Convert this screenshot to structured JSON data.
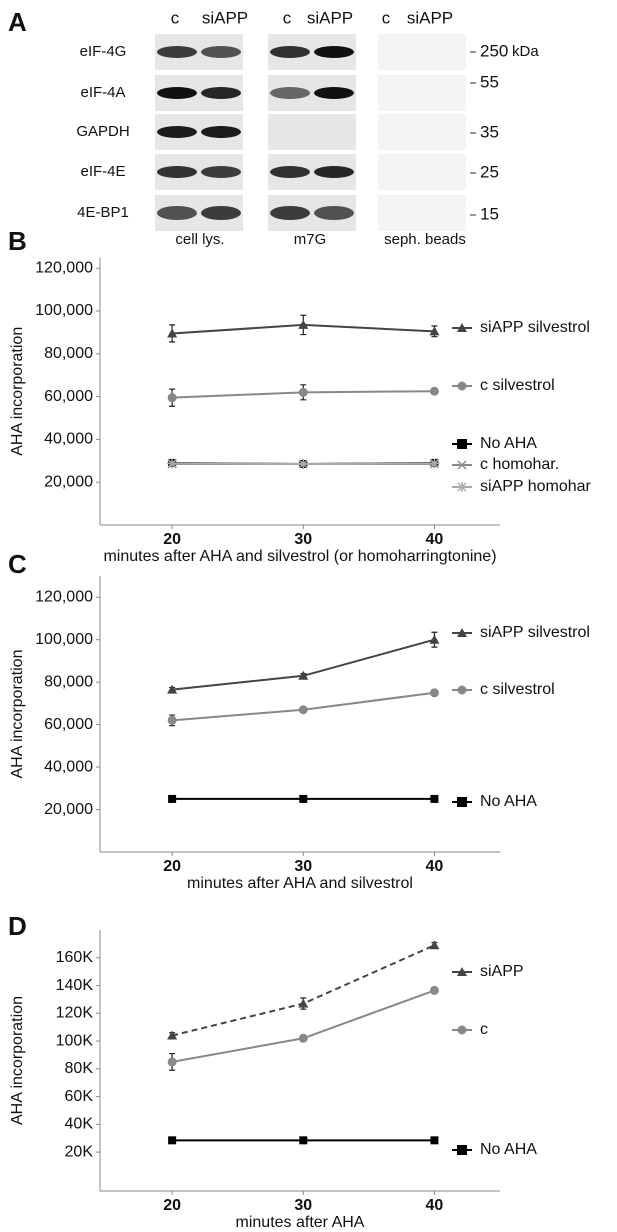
{
  "panel_a": {
    "label": "A",
    "column_headers": [
      "c",
      "siAPP",
      "c",
      "siAPP",
      "c",
      "siAPP"
    ],
    "rows": [
      "eIF-4G",
      "eIF-4A",
      "GAPDH",
      "eIF-4E",
      "4E-BP1"
    ],
    "markers": [
      "250",
      "55",
      "35",
      "25",
      "15"
    ],
    "marker_unit": "kDa",
    "groups": [
      "cell lys.",
      "m7G",
      "seph. beads"
    ]
  },
  "chart_data": [
    {
      "type": "line",
      "panel_label": "B",
      "y_label": "AHA incorporation",
      "x_label": "minutes after AHA and silvestrol (or homoharringtonine)",
      "x": [
        20,
        30,
        40
      ],
      "xlim": [
        14.5,
        45
      ],
      "xticks": [
        20,
        30,
        40
      ],
      "ylim": [
        0,
        125000
      ],
      "yticks": [
        {
          "value": 20000,
          "label": "20,000"
        },
        {
          "value": 40000,
          "label": "40,000"
        },
        {
          "value": 60000,
          "label": "60,000"
        },
        {
          "value": 80000,
          "label": "80,000"
        },
        {
          "value": 100000,
          "label": "100,000"
        },
        {
          "value": 120000,
          "label": "120,000"
        }
      ],
      "grid": false,
      "series": [
        {
          "name": "siAPP silvestrol",
          "color": "#444444",
          "marker": "triangle",
          "dash": false,
          "values": [
            89500,
            93500,
            90500
          ],
          "errors": [
            4000,
            4500,
            2500
          ]
        },
        {
          "name": "c silvestrol",
          "color": "#888888",
          "marker": "circle",
          "dash": false,
          "values": [
            59500,
            62000,
            62500
          ],
          "errors": [
            4000,
            3500,
            800
          ]
        },
        {
          "name": "No AHA",
          "color": "#000000",
          "marker": "square",
          "dash": false,
          "values": [
            29000,
            28500,
            29000
          ],
          "errors": [
            1000,
            1000,
            1000
          ]
        },
        {
          "name": "c homohar.",
          "color": "#8a8a8a",
          "marker": "x",
          "dash": false,
          "values": [
            28500,
            28500,
            28500
          ],
          "errors": [
            800,
            800,
            800
          ]
        },
        {
          "name": "siAPP homohar",
          "color": "#aaaaaa",
          "marker": "star",
          "dash": false,
          "values": [
            28800,
            28500,
            28800
          ],
          "errors": [
            800,
            800,
            800
          ]
        }
      ]
    },
    {
      "type": "line",
      "panel_label": "C",
      "y_label": "AHA incorporation",
      "x_label": "minutes after AHA and silvestrol",
      "x": [
        20,
        30,
        40
      ],
      "xlim": [
        14.5,
        45
      ],
      "xticks": [
        20,
        30,
        40
      ],
      "ylim": [
        0,
        130000
      ],
      "yticks": [
        {
          "value": 20000,
          "label": "20,000"
        },
        {
          "value": 40000,
          "label": "40,000"
        },
        {
          "value": 60000,
          "label": "60,000"
        },
        {
          "value": 80000,
          "label": "80,000"
        },
        {
          "value": 100000,
          "label": "100,000"
        },
        {
          "value": 120000,
          "label": "120,000"
        }
      ],
      "grid": false,
      "series": [
        {
          "name": "siAPP silvestrol",
          "color": "#444444",
          "marker": "triangle",
          "dash": false,
          "values": [
            76500,
            83000,
            100000
          ],
          "errors": [
            1000,
            1000,
            3500
          ]
        },
        {
          "name": "c silvestrol",
          "color": "#888888",
          "marker": "circle",
          "dash": false,
          "values": [
            62000,
            67000,
            75000
          ],
          "errors": [
            2500,
            500,
            500
          ]
        },
        {
          "name": "No AHA",
          "color": "#000000",
          "marker": "square",
          "dash": false,
          "values": [
            25000,
            25000,
            25000
          ],
          "errors": [
            500,
            500,
            500
          ]
        }
      ]
    },
    {
      "type": "line",
      "panel_label": "D",
      "y_label": "AHA incorporation",
      "x_label": "minutes after AHA",
      "x": [
        20,
        30,
        40
      ],
      "xlim": [
        14.5,
        45
      ],
      "xticks": [
        20,
        30,
        40
      ],
      "ylim": [
        -8000,
        180000
      ],
      "yticks": [
        {
          "value": 20000,
          "label": "20K"
        },
        {
          "value": 40000,
          "label": "40K"
        },
        {
          "value": 60000,
          "label": "60K"
        },
        {
          "value": 80000,
          "label": "80K"
        },
        {
          "value": 100000,
          "label": "100K"
        },
        {
          "value": 120000,
          "label": "120K"
        },
        {
          "value": 140000,
          "label": "140K"
        },
        {
          "value": 160000,
          "label": "160K"
        }
      ],
      "grid": false,
      "series": [
        {
          "name": "siAPP",
          "color": "#444444",
          "marker": "triangle",
          "dash": true,
          "values": [
            104000,
            127000,
            169000
          ],
          "errors": [
            2000,
            4000,
            2000
          ]
        },
        {
          "name": "c",
          "color": "#888888",
          "marker": "circle",
          "dash": false,
          "values": [
            85000,
            102000,
            136500
          ],
          "errors": [
            6000,
            2000,
            1000
          ]
        },
        {
          "name": "No AHA",
          "color": "#000000",
          "marker": "square",
          "dash": false,
          "values": [
            28500,
            28500,
            28500
          ],
          "errors": [
            500,
            500,
            500
          ]
        }
      ]
    }
  ]
}
